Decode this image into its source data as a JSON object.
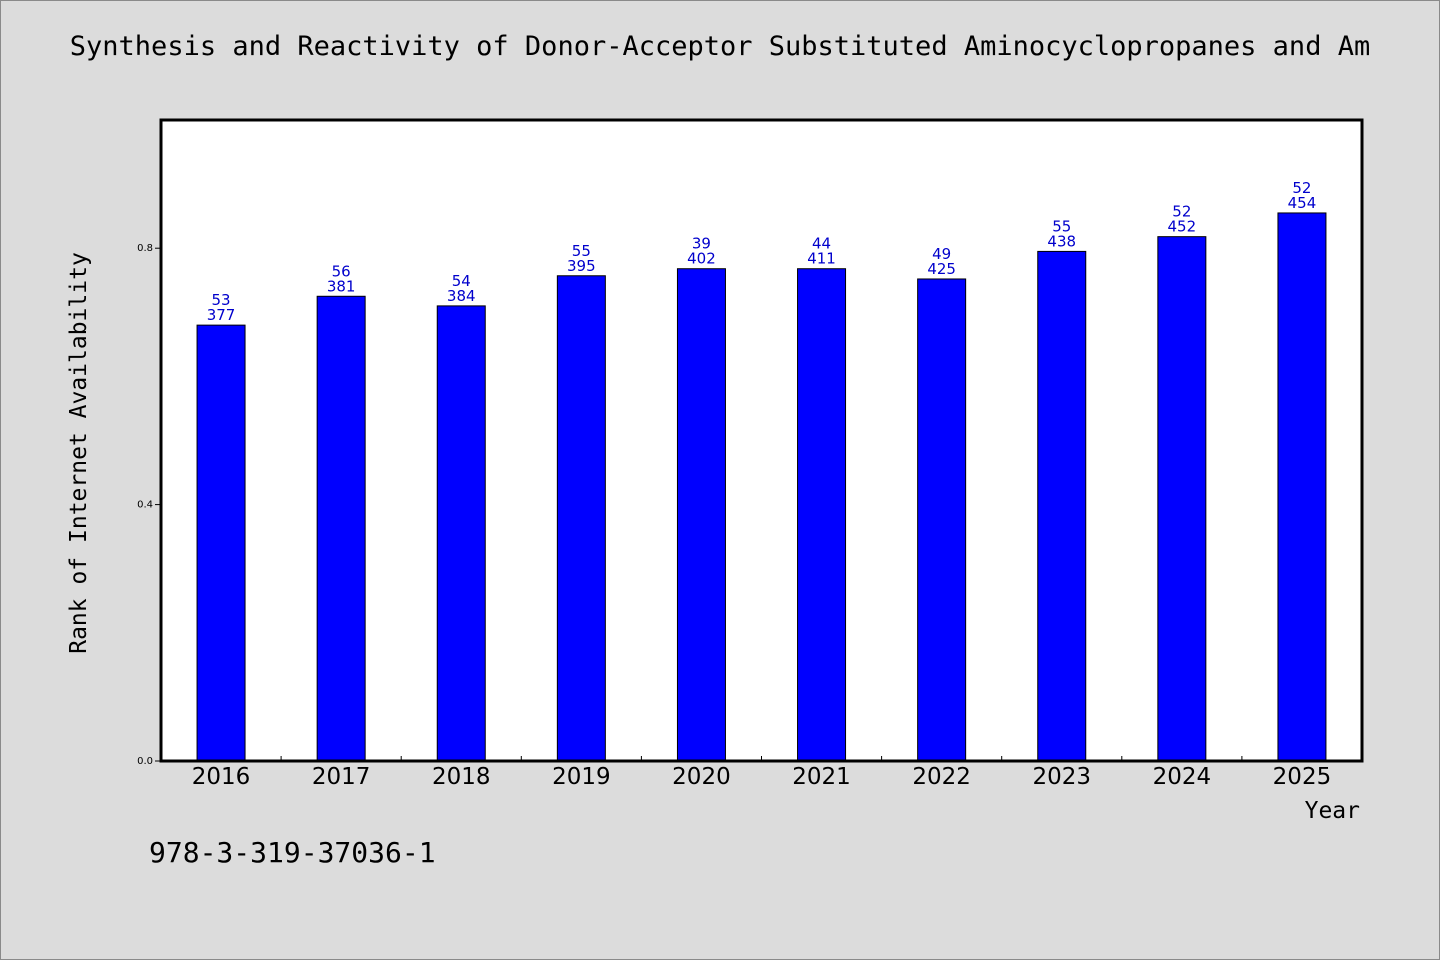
{
  "chart_data": {
    "type": "bar",
    "title": "Synthesis and Reactivity of Donor-Acceptor Substituted Aminocyclopropanes and Am",
    "xlabel": "Year",
    "ylabel": "Rank of Internet Availability",
    "categories": [
      "2016",
      "2017",
      "2018",
      "2019",
      "2020",
      "2021",
      "2022",
      "2023",
      "2024",
      "2025"
    ],
    "values": [
      0.68,
      0.725,
      0.71,
      0.757,
      0.768,
      0.768,
      0.752,
      0.795,
      0.818,
      0.855
    ],
    "label_top": [
      "53",
      "56",
      "54",
      "55",
      "39",
      "44",
      "49",
      "55",
      "52",
      "52"
    ],
    "label_bottom": [
      "377",
      "381",
      "384",
      "395",
      "402",
      "411",
      "425",
      "438",
      "452",
      "454"
    ],
    "ylim": [
      0,
      1.0
    ],
    "yticks": [
      0.0,
      0.4,
      0.8
    ],
    "ytick_labels": [
      "0.0",
      "0.4",
      "0.8"
    ],
    "grid": false,
    "bar_color": "#0000ff",
    "label_color": "#0000cc"
  },
  "footer": {
    "isbn": "978-3-319-37036-1"
  }
}
